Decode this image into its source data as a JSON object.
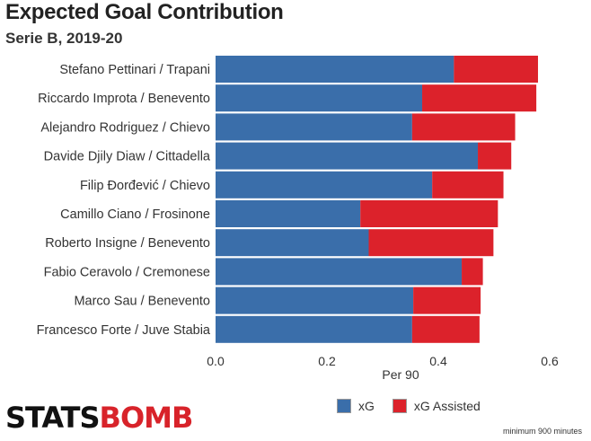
{
  "header": {
    "title": "Expected Goal Contribution",
    "subtitle": "Serie B, 2019-20"
  },
  "legend": {
    "items": [
      {
        "label": "xG",
        "color": "#3a6eaa"
      },
      {
        "label": "xG Assisted",
        "color": "#dc222b"
      }
    ]
  },
  "branding": {
    "logo_part1": "STATS",
    "logo_part2": "BOMB"
  },
  "footnote": "minimum 900 minutes",
  "chart_data": {
    "type": "bar",
    "orientation": "horizontal",
    "stacked": true,
    "categories": [
      "Stefano Pettinari / Trapani",
      "Riccardo Improta / Benevento",
      "Alejandro Rodriguez / Chievo",
      "Davide Djily Diaw / Cittadella",
      "Filip Đorđević / Chievo",
      "Camillo Ciano / Frosinone",
      "Roberto Insigne / Benevento",
      "Fabio Ceravolo / Cremonese",
      "Marco Sau / Benevento",
      "Francesco Forte / Juve Stabia"
    ],
    "series": [
      {
        "name": "xG",
        "color": "#3a6eaa",
        "values": [
          0.428,
          0.371,
          0.353,
          0.471,
          0.389,
          0.26,
          0.275,
          0.442,
          0.355,
          0.353
        ]
      },
      {
        "name": "xG Assisted",
        "color": "#dc222b",
        "values": [
          0.151,
          0.205,
          0.185,
          0.06,
          0.128,
          0.247,
          0.224,
          0.038,
          0.121,
          0.121
        ]
      }
    ],
    "xlabel": "Per 90",
    "ylabel": "",
    "xlim": [
      0,
      0.6
    ],
    "xticks": [
      "0.0",
      "0.2",
      "0.4",
      "0.6"
    ],
    "legend_position": "bottom-right",
    "grid": false
  }
}
